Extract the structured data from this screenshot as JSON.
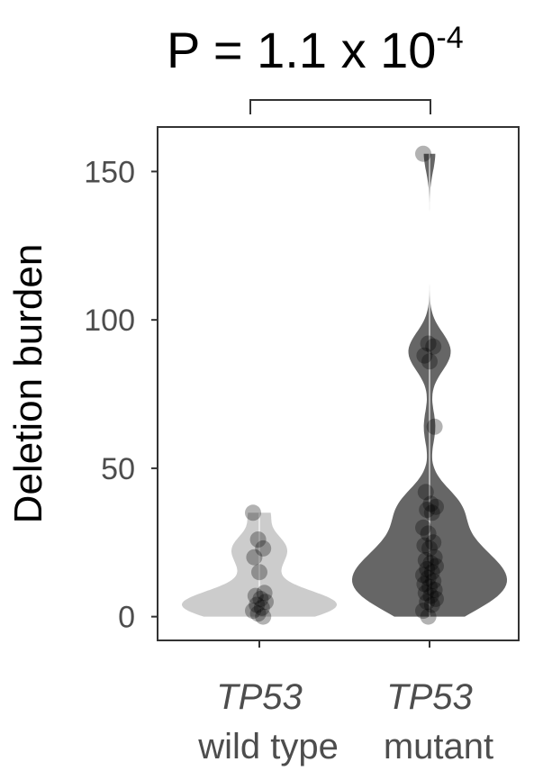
{
  "chart_data": {
    "type": "violin",
    "title": {
      "base": "P = 1.1 x 10",
      "exponent": "-4"
    },
    "ylabel": "Deletion burden",
    "ylim": [
      -8,
      165
    ],
    "yticks": [
      0,
      50,
      100,
      150
    ],
    "ytick_labels": [
      "0",
      "50",
      "100",
      "150"
    ],
    "categories": [
      {
        "gene": "TP53",
        "sub": "wild type"
      },
      {
        "gene": "TP53",
        "sub": "mutant"
      }
    ],
    "series": [
      {
        "name": "TP53 wild type",
        "fill": "#cccccc",
        "points": [
          35,
          26,
          23,
          20,
          15,
          8,
          7,
          6,
          5,
          4,
          3,
          2,
          1,
          0
        ]
      },
      {
        "name": "TP53 mutant",
        "fill": "#666666",
        "points": [
          156,
          92,
          91,
          88,
          86,
          64,
          42,
          38,
          37,
          36,
          35,
          30,
          28,
          25,
          24,
          23,
          20,
          19,
          18,
          17,
          16,
          15,
          14,
          13,
          12,
          11,
          10,
          9,
          8,
          7,
          6,
          5,
          4,
          2,
          0
        ]
      }
    ],
    "comparison_bracket": {
      "between": [
        0,
        1
      ]
    },
    "grid": false
  }
}
